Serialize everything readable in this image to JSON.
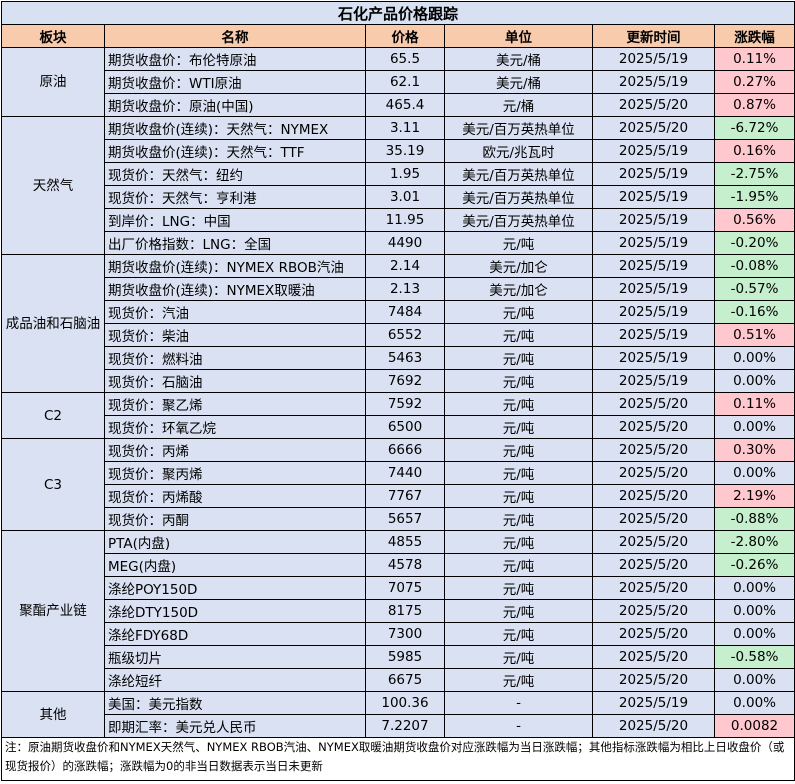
{
  "title": "石化产品价格跟踪",
  "headers": [
    "板块",
    "名称",
    "价格",
    "单位",
    "更新时间",
    "涨跌幅"
  ],
  "groups": [
    {
      "category": "原油",
      "rows": [
        {
          "name": "期货收盘价：布伦特原油",
          "price": "65.5",
          "unit": "美元/桶",
          "date": "2025/5/19",
          "change": "0.11%",
          "dir": "up"
        },
        {
          "name": "期货收盘价：WTI原油",
          "price": "62.1",
          "unit": "美元/桶",
          "date": "2025/5/19",
          "change": "0.27%",
          "dir": "up"
        },
        {
          "name": "期货收盘价：原油(中国)",
          "price": "465.4",
          "unit": "元/桶",
          "date": "2025/5/20",
          "change": "0.87%",
          "dir": "up"
        }
      ]
    },
    {
      "category": "天然气",
      "rows": [
        {
          "name": "期货收盘价(连续)：天然气：NYMEX",
          "price": "3.11",
          "unit": "美元/百万英热单位",
          "date": "2025/5/20",
          "change": "-6.72%",
          "dir": "down"
        },
        {
          "name": "期货收盘价(连续)：天然气：TTF",
          "price": "35.19",
          "unit": "欧元/兆瓦时",
          "date": "2025/5/19",
          "change": "0.16%",
          "dir": "up"
        },
        {
          "name": "现货价：天然气：纽约",
          "price": "1.95",
          "unit": "美元/百万英热单位",
          "date": "2025/5/19",
          "change": "-2.75%",
          "dir": "down"
        },
        {
          "name": "现货价：天然气：亨利港",
          "price": "3.01",
          "unit": "美元/百万英热单位",
          "date": "2025/5/19",
          "change": "-1.95%",
          "dir": "down"
        },
        {
          "name": "到岸价：LNG：中国",
          "price": "11.95",
          "unit": "美元/百万英热单位",
          "date": "2025/5/19",
          "change": "0.56%",
          "dir": "up"
        },
        {
          "name": "出厂价格指数：LNG：全国",
          "price": "4490",
          "unit": "元/吨",
          "date": "2025/5/19",
          "change": "-0.20%",
          "dir": "down"
        }
      ]
    },
    {
      "category": "成品油和石脑油",
      "rows": [
        {
          "name": "期货收盘价(连续)：NYMEX RBOB汽油",
          "price": "2.14",
          "unit": "美元/加仑",
          "date": "2025/5/19",
          "change": "-0.08%",
          "dir": "down"
        },
        {
          "name": "期货收盘价(连续)：NYMEX取暖油",
          "price": "2.13",
          "unit": "美元/加仑",
          "date": "2025/5/19",
          "change": "-0.57%",
          "dir": "down"
        },
        {
          "name": "现货价：汽油",
          "price": "7484",
          "unit": "元/吨",
          "date": "2025/5/19",
          "change": "-0.16%",
          "dir": "down"
        },
        {
          "name": "现货价：柴油",
          "price": "6552",
          "unit": "元/吨",
          "date": "2025/5/19",
          "change": "0.51%",
          "dir": "up"
        },
        {
          "name": "现货价：燃料油",
          "price": "5463",
          "unit": "元/吨",
          "date": "2025/5/19",
          "change": "0.00%",
          "dir": "flat"
        },
        {
          "name": "现货价：石脑油",
          "price": "7692",
          "unit": "元/吨",
          "date": "2025/5/19",
          "change": "0.00%",
          "dir": "flat"
        }
      ]
    },
    {
      "category": "C2",
      "rows": [
        {
          "name": "现货价：聚乙烯",
          "price": "7592",
          "unit": "元/吨",
          "date": "2025/5/20",
          "change": "0.11%",
          "dir": "up"
        },
        {
          "name": "现货价：环氧乙烷",
          "price": "6500",
          "unit": "元/吨",
          "date": "2025/5/20",
          "change": "0.00%",
          "dir": "flat"
        }
      ]
    },
    {
      "category": "C3",
      "rows": [
        {
          "name": "现货价：丙烯",
          "price": "6666",
          "unit": "元/吨",
          "date": "2025/5/20",
          "change": "0.30%",
          "dir": "up"
        },
        {
          "name": "现货价：聚丙烯",
          "price": "7440",
          "unit": "元/吨",
          "date": "2025/5/20",
          "change": "0.00%",
          "dir": "flat"
        },
        {
          "name": "现货价：丙烯酸",
          "price": "7767",
          "unit": "元/吨",
          "date": "2025/5/20",
          "change": "2.19%",
          "dir": "up"
        },
        {
          "name": "现货价：丙酮",
          "price": "5657",
          "unit": "元/吨",
          "date": "2025/5/20",
          "change": "-0.88%",
          "dir": "down"
        }
      ]
    },
    {
      "category": "聚酯产业链",
      "rows": [
        {
          "name": "PTA(内盘)",
          "price": "4855",
          "unit": "元/吨",
          "date": "2025/5/20",
          "change": "-2.80%",
          "dir": "down"
        },
        {
          "name": "MEG(内盘)",
          "price": "4578",
          "unit": "元/吨",
          "date": "2025/5/20",
          "change": "-0.26%",
          "dir": "down"
        },
        {
          "name": "涤纶POY150D",
          "price": "7075",
          "unit": "元/吨",
          "date": "2025/5/20",
          "change": "0.00%",
          "dir": "flat"
        },
        {
          "name": "涤纶DTY150D",
          "price": "8175",
          "unit": "元/吨",
          "date": "2025/5/20",
          "change": "0.00%",
          "dir": "flat"
        },
        {
          "name": "涤纶FDY68D",
          "price": "7300",
          "unit": "元/吨",
          "date": "2025/5/20",
          "change": "0.00%",
          "dir": "flat"
        },
        {
          "name": "瓶级切片",
          "price": "5985",
          "unit": "元/吨",
          "date": "2025/5/20",
          "change": "-0.58%",
          "dir": "down"
        },
        {
          "name": "涤纶短纤",
          "price": "6675",
          "unit": "元/吨",
          "date": "2025/5/20",
          "change": "0.00%",
          "dir": "flat"
        }
      ]
    },
    {
      "category": "其他",
      "rows": [
        {
          "name": "美国：美元指数",
          "price": "100.36",
          "unit": "-",
          "date": "2025/5/19",
          "change": "0.00%",
          "dir": "flat"
        },
        {
          "name": "即期汇率：美元兑人民币",
          "price": "7.2207",
          "unit": "-",
          "date": "2025/5/20",
          "change": "0.0082",
          "dir": "up"
        }
      ]
    }
  ],
  "note": "注：原油期货收盘价和NYMEX天然气、NYMEX RBOB汽油、NYMEX取暖油期货收盘价对应涨跌幅为当日涨跌幅；其他指标涨跌幅为相比上日收盘价（或现货报价）的涨跌幅；涨跌幅为0的非当日数据表示当日未更新",
  "colors": {
    "up": "#ffc7ce",
    "down": "#c6efce",
    "cell": "#d9e1f2",
    "header": "#f8cbad"
  }
}
